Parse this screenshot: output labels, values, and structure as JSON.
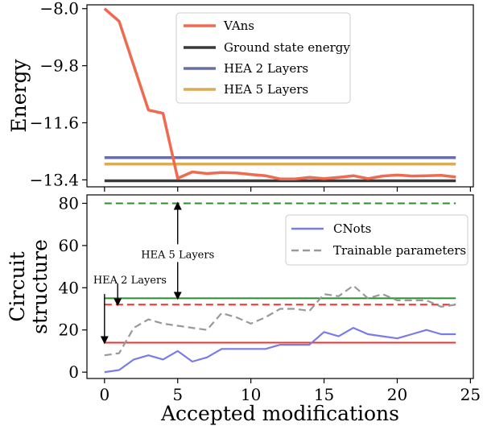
{
  "chart_data": [
    {
      "type": "line",
      "ylabel": "Energy",
      "ylim": [
        -13.62,
        -7.88
      ],
      "xlim": [
        -1.2,
        25.2
      ],
      "yticks": [
        "-8.0",
        "-9.8",
        "-11.6",
        "-13.4"
      ],
      "yticks_values": [
        -8.0,
        -9.8,
        -11.6,
        -13.4
      ],
      "legend_placement": "upper-center",
      "series": [
        {
          "name": "VAns",
          "color": "#ee6a50",
          "x": [
            0,
            1,
            2,
            3,
            4,
            5,
            6,
            7,
            8,
            9,
            10,
            11,
            12,
            13,
            14,
            15,
            16,
            17,
            18,
            19,
            20,
            21,
            22,
            23,
            24
          ],
          "y": [
            -8.0,
            -8.4,
            -9.8,
            -11.2,
            -11.3,
            -13.35,
            -13.15,
            -13.2,
            -13.17,
            -13.18,
            -13.23,
            -13.27,
            -13.37,
            -13.37,
            -13.32,
            -13.36,
            -13.32,
            -13.27,
            -13.36,
            -13.28,
            -13.25,
            -13.28,
            -13.27,
            -13.26,
            -13.31
          ]
        },
        {
          "name": "Ground state energy",
          "color": "#3a3a3a",
          "x": [
            0,
            24
          ],
          "y": [
            -13.43,
            -13.43
          ]
        },
        {
          "name": "HEA 2 Layers",
          "color": "#6a6ea8",
          "x": [
            0,
            24
          ],
          "y": [
            -12.7,
            -12.7
          ]
        },
        {
          "name": "HEA 5 Layers",
          "color": "#ddaa55",
          "x": [
            0,
            24
          ],
          "y": [
            -12.9,
            -12.9
          ]
        }
      ]
    },
    {
      "type": "line",
      "xlabel": "Accepted modifications",
      "ylabel_line1": "Circuit",
      "ylabel_line2": "structure",
      "ylim": [
        -3,
        84
      ],
      "xlim": [
        -1.2,
        25.2
      ],
      "xticks": [
        "0",
        "5",
        "10",
        "15",
        "20",
        "25"
      ],
      "xticks_values": [
        0,
        5,
        10,
        15,
        20,
        25
      ],
      "yticks": [
        "0",
        "20",
        "40",
        "60",
        "80"
      ],
      "yticks_values": [
        0,
        20,
        40,
        60,
        80
      ],
      "legend_placement": "upper-right",
      "series": [
        {
          "name": "CNots",
          "color": "#7b7be8",
          "dashed": false,
          "x": [
            0,
            1,
            2,
            3,
            4,
            5,
            6,
            7,
            8,
            9,
            10,
            11,
            12,
            13,
            14,
            15,
            16,
            17,
            18,
            19,
            20,
            21,
            22,
            23,
            24
          ],
          "y": [
            0,
            1,
            6,
            8,
            6,
            10,
            5,
            7,
            11,
            11,
            11,
            11,
            13,
            13,
            13,
            19,
            17,
            21,
            18,
            17,
            16,
            18,
            20,
            18,
            18
          ]
        },
        {
          "name": "Trainable parameters",
          "color": "#999999",
          "dashed": true,
          "x": [
            0,
            1,
            2,
            3,
            4,
            5,
            6,
            7,
            8,
            9,
            10,
            11,
            12,
            13,
            14,
            15,
            16,
            17,
            18,
            19,
            20,
            21,
            22,
            23,
            24
          ],
          "y": [
            8,
            9,
            21,
            25,
            23,
            22,
            21,
            20,
            28,
            26,
            23,
            26,
            30,
            30,
            29,
            37,
            36,
            41,
            35,
            37,
            34,
            34,
            34,
            31,
            32
          ]
        }
      ],
      "reference_lines": [
        {
          "y": 80,
          "color": "#2e8b2e",
          "dashed": true
        },
        {
          "y": 35,
          "color": "#2e8b2e",
          "dashed": false
        },
        {
          "y": 32,
          "color": "#ee3333",
          "dashed": true
        },
        {
          "y": 14,
          "color": "#ee3333",
          "dashed": false
        }
      ],
      "annotations": [
        {
          "text": "HEA 5 Layers",
          "arrow_x": 5,
          "arrow_from": 56,
          "arrow_to_up": 80,
          "arrow_to_down": 35
        },
        {
          "text": "HEA 2 Layers",
          "arrows": [
            {
              "x": 0,
              "from": 37,
              "to": 14
            },
            {
              "x": 0.9,
              "from": 42,
              "to": 32
            }
          ]
        }
      ]
    }
  ]
}
